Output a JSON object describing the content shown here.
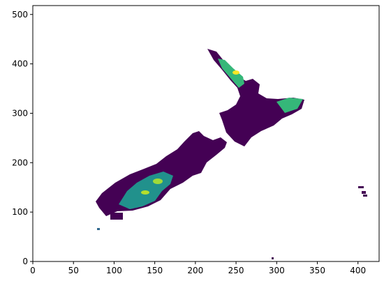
{
  "chart_data": {
    "type": "heatmap",
    "title": "",
    "xlabel": "",
    "ylabel": "",
    "xlim": [
      0,
      426
    ],
    "ylim": [
      0,
      518
    ],
    "x_ticks": [
      0,
      50,
      100,
      150,
      200,
      250,
      300,
      350,
      400
    ],
    "y_ticks": [
      0,
      100,
      200,
      300,
      400,
      500
    ],
    "grid": false,
    "colormap": "viridis",
    "colors": {
      "low": "#440154",
      "mid_low": "#31688e",
      "mid": "#21918c",
      "mid_high": "#35b779",
      "high": "#fde725"
    }
  }
}
